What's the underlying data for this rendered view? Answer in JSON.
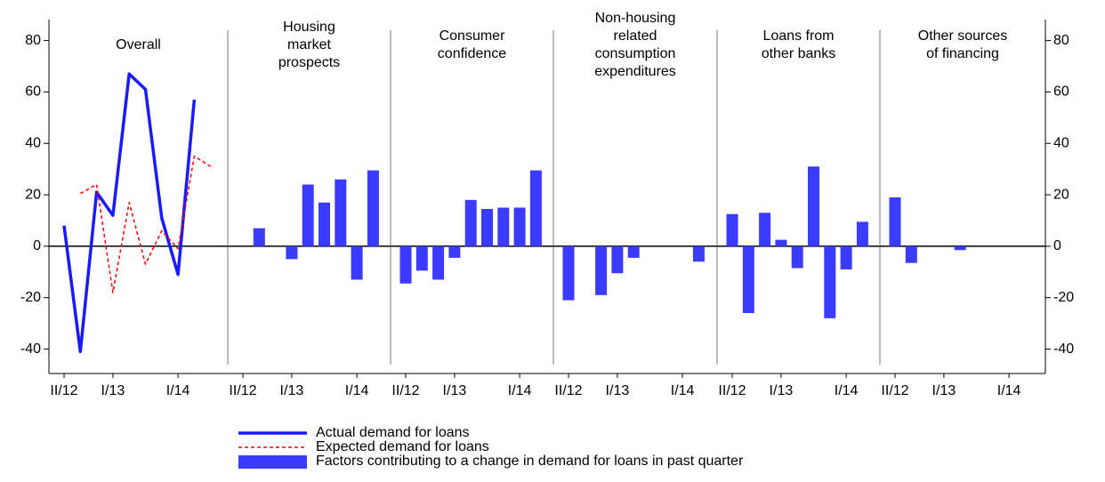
{
  "chart_data": {
    "type": "panels",
    "categories": [
      "II/12",
      null,
      null,
      "I/13",
      null,
      null,
      null,
      "I/14",
      null,
      null
    ],
    "ylim": [
      -45,
      84
    ],
    "yticks": [
      -40,
      -20,
      0,
      20,
      40,
      60,
      80
    ],
    "y2lim": [
      -45,
      84
    ],
    "y2ticks": [
      -40,
      -20,
      0,
      20,
      40,
      60,
      80
    ],
    "series": [
      {
        "name": "Actual demand for loans",
        "color": "#1a1aff",
        "style": "solid",
        "values": [
          8,
          -41,
          21,
          12,
          67,
          61,
          11,
          -11,
          57,
          null
        ]
      },
      {
        "name": "Expected demand for loans",
        "color": "#ff0000",
        "style": "dashed",
        "values": [
          null,
          20.5,
          24,
          -18,
          17,
          -7,
          6,
          -1,
          35,
          31
        ]
      }
    ],
    "bar_series": {
      "name": "Factors contributing to a change in demand for loans in past quarter",
      "color": "#3b3bff"
    },
    "panels": [
      {
        "title": [
          "Overall"
        ],
        "values": null
      },
      {
        "title": [
          "Housing",
          "market",
          "prospects"
        ],
        "values": [
          null,
          7,
          null,
          -5,
          24,
          17,
          26,
          -13,
          29.5,
          null
        ]
      },
      {
        "title": [
          "Consumer",
          "confidence"
        ],
        "values": [
          -14.5,
          -9.5,
          -13,
          -4.5,
          18,
          14.5,
          15,
          15,
          29.5,
          null
        ]
      },
      {
        "title": [
          "Non-housing",
          "related",
          "consumption",
          "expenditures"
        ],
        "values": [
          -21,
          null,
          -19,
          -10.5,
          -4.5,
          null,
          null,
          null,
          -6,
          null
        ]
      },
      {
        "title": [
          "Loans from",
          "other banks"
        ],
        "values": [
          12.5,
          -26,
          13,
          2.5,
          -8.5,
          31,
          -28,
          -9,
          9.5,
          null
        ]
      },
      {
        "title": [
          "Other sources",
          "of financing"
        ],
        "values": [
          19,
          -6.5,
          null,
          null,
          -1.5,
          null,
          null,
          null,
          null,
          null
        ]
      }
    ]
  }
}
